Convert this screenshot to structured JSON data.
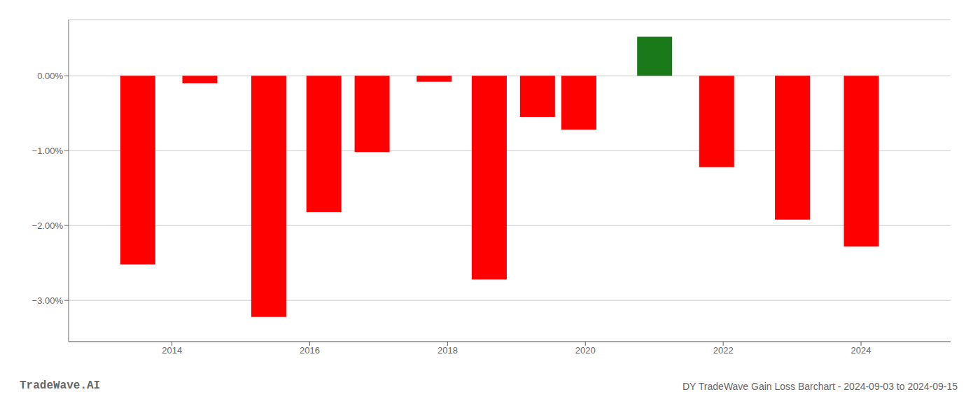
{
  "chart_data": {
    "type": "bar",
    "x": [
      2013.5,
      2014.4,
      2015.4,
      2016.2,
      2016.9,
      2017.8,
      2018.6,
      2019.3,
      2019.9,
      2021.0,
      2021.9,
      2023.0,
      2024.0
    ],
    "values": [
      -2.52,
      -0.1,
      -3.22,
      -1.82,
      -1.02,
      -0.08,
      -2.72,
      -0.55,
      -0.72,
      0.52,
      -1.22,
      -1.92,
      -2.28
    ],
    "colors": [
      "#ff0000",
      "#ff0000",
      "#ff0000",
      "#ff0000",
      "#ff0000",
      "#ff0000",
      "#ff0000",
      "#ff0000",
      "#ff0000",
      "#1a7a1a",
      "#ff0000",
      "#ff0000",
      "#ff0000"
    ],
    "xlim": [
      2012.5,
      2025.3
    ],
    "xticks": [
      2014,
      2016,
      2018,
      2020,
      2022,
      2024
    ],
    "ylim": [
      -3.55,
      0.75
    ],
    "yticks": [
      {
        "value": 0.0,
        "label": "0.00%"
      },
      {
        "value": -1.0,
        "label": "−1.00%"
      },
      {
        "value": -2.0,
        "label": "−2.00%"
      },
      {
        "value": -3.0,
        "label": "−3.00%"
      }
    ],
    "grid": true,
    "annotations": [
      "TradeWave.AI",
      "DY TradeWave Gain Loss Barchart - 2024-09-03 to 2024-09-15"
    ]
  }
}
